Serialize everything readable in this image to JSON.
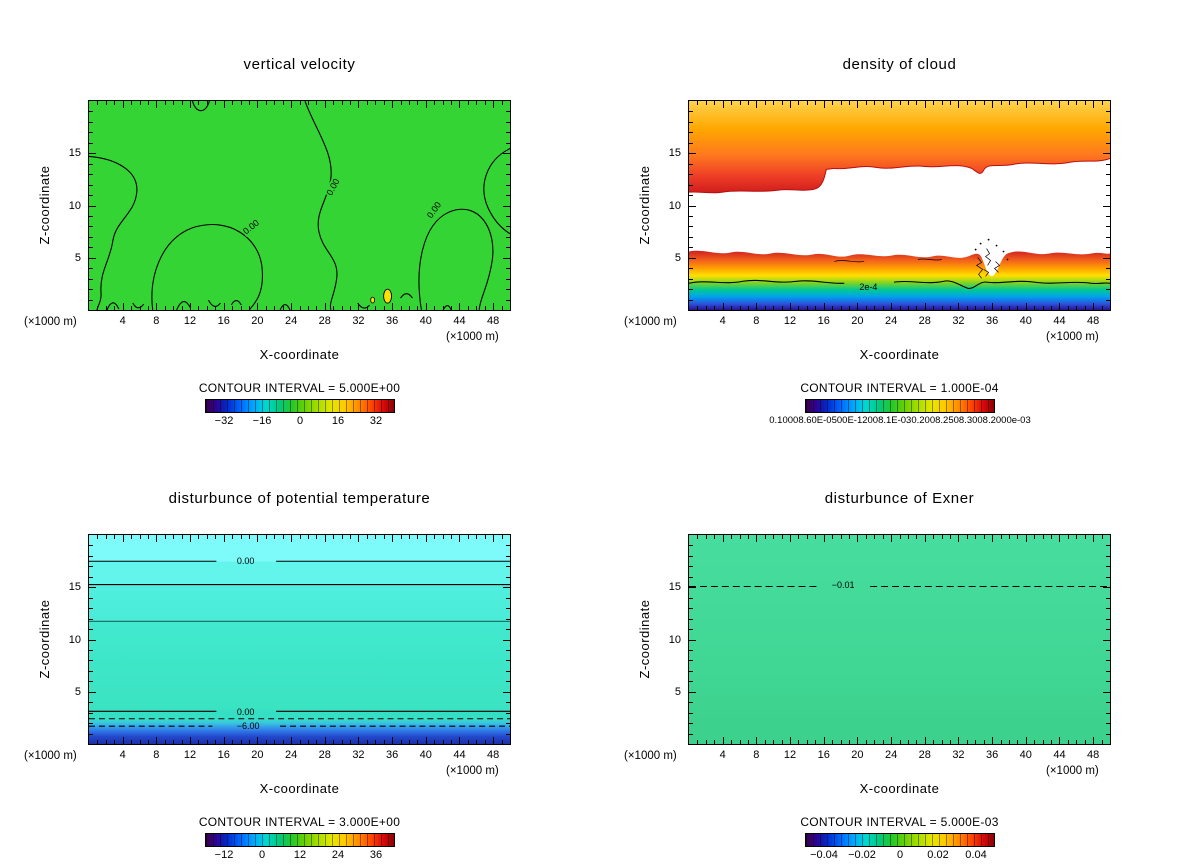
{
  "figure": {
    "background": "#ffffff",
    "layout": "2x2 grid of filled contour plots"
  },
  "chart_data": [
    {
      "type": "filled-contour",
      "title": "vertical velocity",
      "xlabel": "X-coordinate",
      "ylabel": "Z-coordinate",
      "x_unit": "(×1000 m)",
      "x_range": [
        0,
        50
      ],
      "z_range": [
        0,
        20
      ],
      "x_ticks": [
        4,
        8,
        12,
        16,
        20,
        24,
        28,
        32,
        36,
        40,
        44,
        48
      ],
      "z_ticks": [
        5,
        10,
        15
      ],
      "caption": "CONTOUR INTERVAL = 5.000E+00",
      "contour_interval": "5.000E+00",
      "colorbar_ticks": [
        "−32",
        "−16",
        "0",
        "16",
        "32"
      ],
      "colorbar_range": [
        -40,
        40
      ],
      "field_fill": "#35d435",
      "contour_labels": [
        {
          "text": "0.00",
          "x": 29.0,
          "z": 11.8,
          "rot": -62
        },
        {
          "text": "0.00",
          "x": 19.2,
          "z": 7.9,
          "rot": -38
        },
        {
          "text": "0.00",
          "x": 41.0,
          "z": 9.6,
          "rot": -55
        }
      ],
      "field_note": "field is near zero everywhere; 0.00 contours meander from top edge to the surface with small positive pockets near the bottom"
    },
    {
      "type": "filled-contour",
      "title": "density of cloud",
      "xlabel": "X-coordinate",
      "ylabel": "Z-coordinate",
      "x_unit": "(×1000 m)",
      "x_range": [
        0,
        50
      ],
      "z_range": [
        0,
        20
      ],
      "x_ticks": [
        4,
        8,
        12,
        16,
        20,
        24,
        28,
        32,
        36,
        40,
        44,
        48
      ],
      "z_ticks": [
        5,
        10,
        15
      ],
      "caption": "CONTOUR INTERVAL = 1.000E-04",
      "contour_interval": "1.000E-04",
      "colorbar_ticks": [
        "0.10008.60E-0500E-12008.1E-030.2008.2508.3008.2000e-03"
      ],
      "contour_labels": [
        {
          "text": "2e-4",
          "x": 21.3,
          "z": 2.2,
          "rot": 0
        }
      ],
      "bands": [
        {
          "z_top": 20,
          "z_bottom": 13.5,
          "note": "upper cloud deck: yellow-orange-red, wavy base with a step near x=13"
        },
        {
          "z_top": 5.3,
          "z_bottom": 0,
          "note": "surface layer: red-orange-yellow-green-cyan-blue-dark blue, noisy burst near x=36"
        }
      ]
    },
    {
      "type": "filled-contour",
      "title": "disturbunce of potential temperature",
      "xlabel": "X-coordinate",
      "ylabel": "Z-coordinate",
      "x_unit": "(×1000 m)",
      "x_range": [
        0,
        50
      ],
      "z_range": [
        0,
        20
      ],
      "x_ticks": [
        4,
        8,
        12,
        16,
        20,
        24,
        28,
        32,
        36,
        40,
        44,
        48
      ],
      "z_ticks": [
        5,
        10,
        15
      ],
      "caption": "CONTOUR INTERVAL = 3.000E+00",
      "contour_interval": "3.000E+00",
      "colorbar_ticks": [
        "−12",
        "0",
        "12",
        "24",
        "36"
      ],
      "contour_labels": [
        {
          "text": "0.00",
          "x": 18.6,
          "z": 17.5,
          "rot": 0
        },
        {
          "text": "0.00",
          "x": 18.6,
          "z": 3.1,
          "rot": 0
        },
        {
          "text": "−6.00",
          "x": 18.9,
          "z": 1.7,
          "rot": 0
        }
      ],
      "field_note": "horizontally uniform layers: light cyan aloft, teal mid-levels, deep blue negative layer at the surface with dashed negative contours"
    },
    {
      "type": "filled-contour",
      "title": "disturbunce of Exner",
      "xlabel": "X-coordinate",
      "ylabel": "Z-coordinate",
      "x_unit": "(×1000 m)",
      "x_range": [
        0,
        50
      ],
      "z_range": [
        0,
        20
      ],
      "x_ticks": [
        4,
        8,
        12,
        16,
        20,
        24,
        28,
        32,
        36,
        40,
        44,
        48
      ],
      "z_ticks": [
        5,
        10,
        15
      ],
      "caption": "CONTOUR INTERVAL = 5.000E-03",
      "contour_interval": "5.000E-03",
      "colorbar_ticks": [
        "−0.04",
        "−0.02",
        "0",
        "0.02",
        "0.04"
      ],
      "contour_labels": [
        {
          "text": "−0.01",
          "x": 18.3,
          "z": 15.2,
          "rot": 0
        }
      ],
      "field_note": "nearly uniform field around -0.01; single dashed -0.01 contour near z=15"
    }
  ]
}
